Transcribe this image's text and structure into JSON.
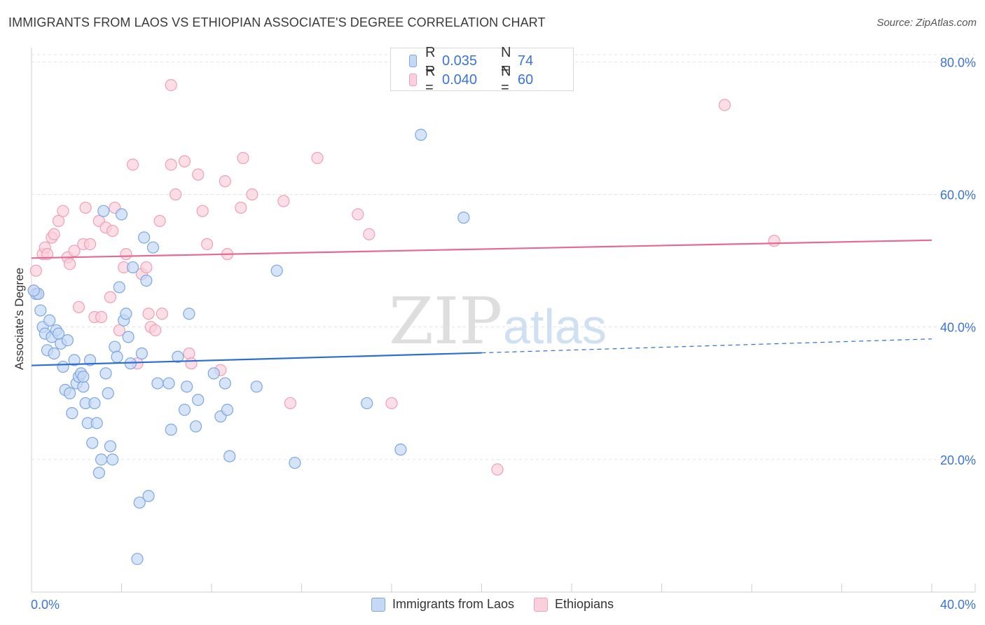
{
  "title": "IMMIGRANTS FROM LAOS VS ETHIOPIAN ASSOCIATE'S DEGREE CORRELATION CHART",
  "source": "Source: ZipAtlas.com",
  "watermark": {
    "zip": "ZIP",
    "atlas": "atlas"
  },
  "legend": {
    "rows": [
      {
        "r_label": "R =",
        "r_value": "0.035",
        "n_label": "N =",
        "n_value": "74"
      },
      {
        "r_label": "R =",
        "r_value": "0.040",
        "n_label": "N =",
        "n_value": "60"
      }
    ]
  },
  "colors": {
    "laos_fill": "#c5d9f5",
    "laos_stroke": "#7ea6e0",
    "laos_line": "#2d6fcc",
    "eth_fill": "#fbd0dd",
    "eth_stroke": "#ef9fb8",
    "eth_line": "#e36b93",
    "tick_label": "#3b74d6",
    "grid": "#e3e3e3"
  },
  "chart_data": {
    "type": "scatter",
    "title": "IMMIGRANTS FROM LAOS VS ETHIOPIAN ASSOCIATE'S DEGREE CORRELATION CHART",
    "xlabel": "",
    "ylabel": "Associate's Degree",
    "xlim": [
      0,
      40
    ],
    "ylim": [
      0,
      83
    ],
    "x_tick_labels": [
      "0.0%",
      "40.0%"
    ],
    "y_ticks": [
      20,
      40,
      60,
      80
    ],
    "y_tick_labels": [
      "20.0%",
      "40.0%",
      "60.0%",
      "80.0%"
    ],
    "grid": true,
    "legend_position": "top-center",
    "series": [
      {
        "name": "Immigrants from Laos",
        "trend": {
          "x": [
            0,
            20
          ],
          "y": [
            34.2,
            36.1
          ],
          "dashed_to": [
            40,
            38.2
          ]
        },
        "points": [
          [
            0.2,
            45
          ],
          [
            0.3,
            45
          ],
          [
            0.4,
            42.5
          ],
          [
            0.5,
            40
          ],
          [
            0.6,
            39
          ],
          [
            0.7,
            36.5
          ],
          [
            0.8,
            41
          ],
          [
            0.9,
            38.5
          ],
          [
            1.0,
            36
          ],
          [
            1.1,
            39.5
          ],
          [
            1.3,
            37.5
          ],
          [
            1.4,
            34
          ],
          [
            1.5,
            30.5
          ],
          [
            1.6,
            38
          ],
          [
            1.7,
            30
          ],
          [
            1.8,
            27
          ],
          [
            1.9,
            35
          ],
          [
            2.0,
            31.5
          ],
          [
            2.1,
            32.5
          ],
          [
            2.2,
            33
          ],
          [
            2.3,
            31
          ],
          [
            2.4,
            28.5
          ],
          [
            2.5,
            25.5
          ],
          [
            2.6,
            35
          ],
          [
            2.7,
            22.5
          ],
          [
            2.8,
            28.5
          ],
          [
            2.9,
            25.5
          ],
          [
            3.0,
            18
          ],
          [
            3.1,
            20
          ],
          [
            3.2,
            57.5
          ],
          [
            3.3,
            33
          ],
          [
            3.4,
            30
          ],
          [
            3.5,
            22
          ],
          [
            3.6,
            20
          ],
          [
            3.7,
            37
          ],
          [
            3.8,
            35.5
          ],
          [
            3.9,
            46
          ],
          [
            4.0,
            57
          ],
          [
            4.1,
            41
          ],
          [
            4.2,
            42
          ],
          [
            4.3,
            38.5
          ],
          [
            4.4,
            34.5
          ],
          [
            4.5,
            49
          ],
          [
            4.8,
            13.5
          ],
          [
            4.9,
            36
          ],
          [
            5.0,
            53.5
          ],
          [
            5.1,
            47
          ],
          [
            5.2,
            14.5
          ],
          [
            5.4,
            52
          ],
          [
            5.6,
            31.5
          ],
          [
            6.1,
            31.5
          ],
          [
            6.2,
            24.5
          ],
          [
            6.5,
            35.5
          ],
          [
            6.8,
            27.5
          ],
          [
            6.9,
            31
          ],
          [
            7.0,
            42
          ],
          [
            7.3,
            25
          ],
          [
            7.4,
            29
          ],
          [
            8.1,
            33
          ],
          [
            8.4,
            26.5
          ],
          [
            8.6,
            31.5
          ],
          [
            8.7,
            27.5
          ],
          [
            8.8,
            20.5
          ],
          [
            10.0,
            31
          ],
          [
            10.9,
            48.5
          ],
          [
            11.7,
            19.5
          ],
          [
            14.9,
            28.5
          ],
          [
            16.4,
            21.5
          ],
          [
            17.3,
            69
          ],
          [
            19.2,
            56.5
          ],
          [
            4.7,
            5
          ],
          [
            2.3,
            32.5
          ],
          [
            1.2,
            39
          ],
          [
            0.1,
            45.5
          ]
        ]
      },
      {
        "name": "Ethiopians",
        "trend": {
          "x": [
            0,
            40
          ],
          "y": [
            50.4,
            53.1
          ]
        },
        "points": [
          [
            0.2,
            48.5
          ],
          [
            0.3,
            45
          ],
          [
            0.5,
            51
          ],
          [
            0.6,
            52
          ],
          [
            0.7,
            51
          ],
          [
            0.9,
            53.5
          ],
          [
            1.0,
            54
          ],
          [
            1.2,
            56
          ],
          [
            1.4,
            57.5
          ],
          [
            1.6,
            50.5
          ],
          [
            1.7,
            49.5
          ],
          [
            1.9,
            51.5
          ],
          [
            2.1,
            43
          ],
          [
            2.3,
            52.5
          ],
          [
            2.4,
            58
          ],
          [
            2.6,
            52.5
          ],
          [
            2.8,
            41.5
          ],
          [
            3.0,
            56
          ],
          [
            3.1,
            41.5
          ],
          [
            3.3,
            55
          ],
          [
            3.5,
            44.5
          ],
          [
            3.6,
            54.5
          ],
          [
            3.7,
            58
          ],
          [
            3.9,
            39.5
          ],
          [
            4.1,
            49
          ],
          [
            4.2,
            51
          ],
          [
            4.5,
            64.5
          ],
          [
            4.7,
            34.5
          ],
          [
            4.9,
            48
          ],
          [
            5.1,
            49
          ],
          [
            5.2,
            42
          ],
          [
            5.3,
            40
          ],
          [
            5.5,
            39.5
          ],
          [
            5.7,
            56
          ],
          [
            5.8,
            42
          ],
          [
            6.2,
            64.5
          ],
          [
            6.4,
            60
          ],
          [
            6.8,
            65
          ],
          [
            7.0,
            36
          ],
          [
            7.1,
            34.5
          ],
          [
            7.4,
            63
          ],
          [
            7.6,
            57.5
          ],
          [
            7.8,
            52.5
          ],
          [
            8.4,
            33.5
          ],
          [
            8.6,
            62
          ],
          [
            8.7,
            51
          ],
          [
            9.3,
            58
          ],
          [
            9.4,
            65.5
          ],
          [
            9.8,
            60
          ],
          [
            11.2,
            59
          ],
          [
            11.5,
            28.5
          ],
          [
            12.7,
            65.5
          ],
          [
            14.5,
            57
          ],
          [
            15.0,
            54
          ],
          [
            16.0,
            28.5
          ],
          [
            20.7,
            18.5
          ],
          [
            30.8,
            73.5
          ],
          [
            33.0,
            53
          ],
          [
            6.2,
            76.5
          ],
          [
            0.1,
            45.5
          ]
        ]
      }
    ]
  }
}
